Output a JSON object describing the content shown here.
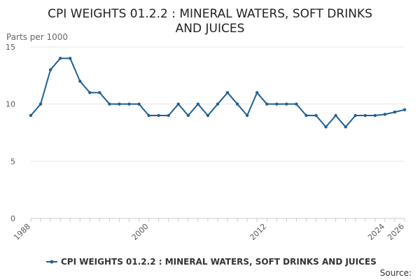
{
  "chart_data": {
    "type": "line",
    "title_lines": [
      "CPI WEIGHTS 01.2.2 : MINERAL WATERS, SOFT DRINKS",
      "AND JUICES"
    ],
    "ylabel": "Parts per 1000",
    "xlabel": "",
    "ylim": [
      0,
      15
    ],
    "xlim": [
      1988,
      2026
    ],
    "y_ticks": [
      0,
      5,
      10,
      15
    ],
    "x_ticks": [
      "1988",
      "2000",
      "2012",
      "2024",
      "2026"
    ],
    "grid": true,
    "legend_position": "bottom",
    "source_label": "Source:",
    "series": [
      {
        "name": "CPI WEIGHTS 01.2.2 : MINERAL WATERS, SOFT DRINKS AND JUICES",
        "color": "#206095",
        "x": [
          1988,
          1989,
          1990,
          1991,
          1992,
          1993,
          1994,
          1995,
          1996,
          1997,
          1998,
          1999,
          2000,
          2001,
          2002,
          2003,
          2004,
          2005,
          2006,
          2007,
          2008,
          2009,
          2010,
          2011,
          2012,
          2013,
          2014,
          2015,
          2016,
          2017,
          2018,
          2019,
          2020,
          2021,
          2022,
          2023,
          2024,
          2025,
          2026
        ],
        "values": [
          9,
          10,
          13,
          14,
          14,
          12,
          11,
          11,
          10,
          10,
          10,
          10,
          9,
          9,
          9,
          10,
          9,
          10,
          9,
          10,
          11,
          10,
          9,
          11,
          10,
          10,
          10,
          10,
          9,
          9,
          8,
          9,
          8,
          9,
          9,
          9,
          9.1,
          9.3,
          9.5
        ]
      }
    ]
  }
}
